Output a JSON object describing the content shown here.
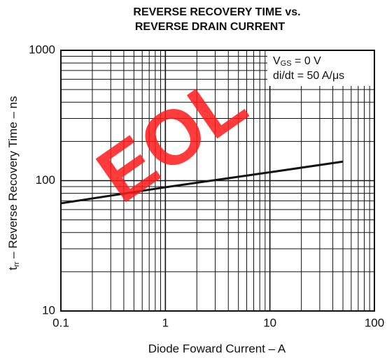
{
  "chart_data": {
    "type": "line",
    "title": [
      "REVERSE RECOVERY TIME vs.",
      "REVERSE DRAIN CURRENT"
    ],
    "xlabel": "Diode Foward Current – A",
    "ylabel": [
      "t",
      "rr",
      " – Reverse Recovery Time – ns"
    ],
    "annotations": [
      [
        "V",
        "GS",
        " = 0 V"
      ],
      [
        "di/dt = 50 A/μs"
      ]
    ],
    "watermark": "EOL",
    "x": [
      0.1,
      1,
      10,
      50
    ],
    "series": [
      {
        "color": "#111111",
        "values": [
          67,
          89,
          116,
          140
        ]
      }
    ],
    "xlim": [
      0.1,
      100
    ],
    "ylim": [
      10,
      1000
    ],
    "xticks": [
      0.1,
      1,
      10,
      100
    ],
    "yticks": [
      10,
      100,
      1000
    ],
    "xlog": true,
    "ylog": true,
    "grid": true
  }
}
